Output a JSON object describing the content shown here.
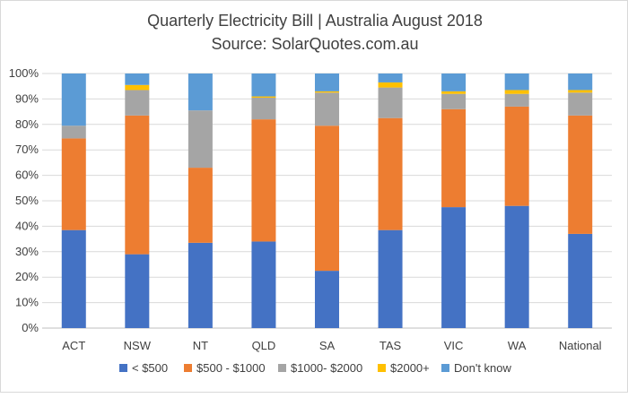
{
  "chart_data": {
    "type": "bar",
    "stacked": true,
    "title": "Quarterly Electricity Bill | Australia August 2018",
    "subtitle": "Source: SolarQuotes.com.au",
    "categories": [
      "ACT",
      "NSW",
      "NT",
      "QLD",
      "SA",
      "TAS",
      "VIC",
      "WA",
      "National"
    ],
    "ylim": [
      0,
      100
    ],
    "yticks": [
      "0%",
      "10%",
      "20%",
      "30%",
      "40%",
      "50%",
      "60%",
      "70%",
      "80%",
      "90%",
      "100%"
    ],
    "grid": true,
    "legend_position": "bottom",
    "series": [
      {
        "name": "< $500",
        "color": "#4472C4",
        "values": [
          38.5,
          29,
          33.5,
          34,
          22.5,
          38.5,
          47.5,
          48,
          37
        ]
      },
      {
        "name": "$500 - $1000",
        "color": "#ED7D31",
        "values": [
          36,
          54.5,
          29.5,
          48,
          57,
          44,
          38.5,
          39,
          46.5
        ]
      },
      {
        "name": "$1000- $2000",
        "color": "#A5A5A5",
        "values": [
          5,
          10,
          22.5,
          8.5,
          13,
          12,
          6,
          5,
          9
        ]
      },
      {
        "name": "$2000+",
        "color": "#FFC000",
        "values": [
          0,
          2,
          0,
          0.5,
          0.5,
          2,
          1,
          1.5,
          1
        ]
      },
      {
        "name": "Don't know",
        "color": "#5B9BD5",
        "values": [
          20.5,
          4.5,
          14.5,
          9,
          7,
          3.5,
          7,
          6.5,
          6.5
        ]
      }
    ]
  }
}
